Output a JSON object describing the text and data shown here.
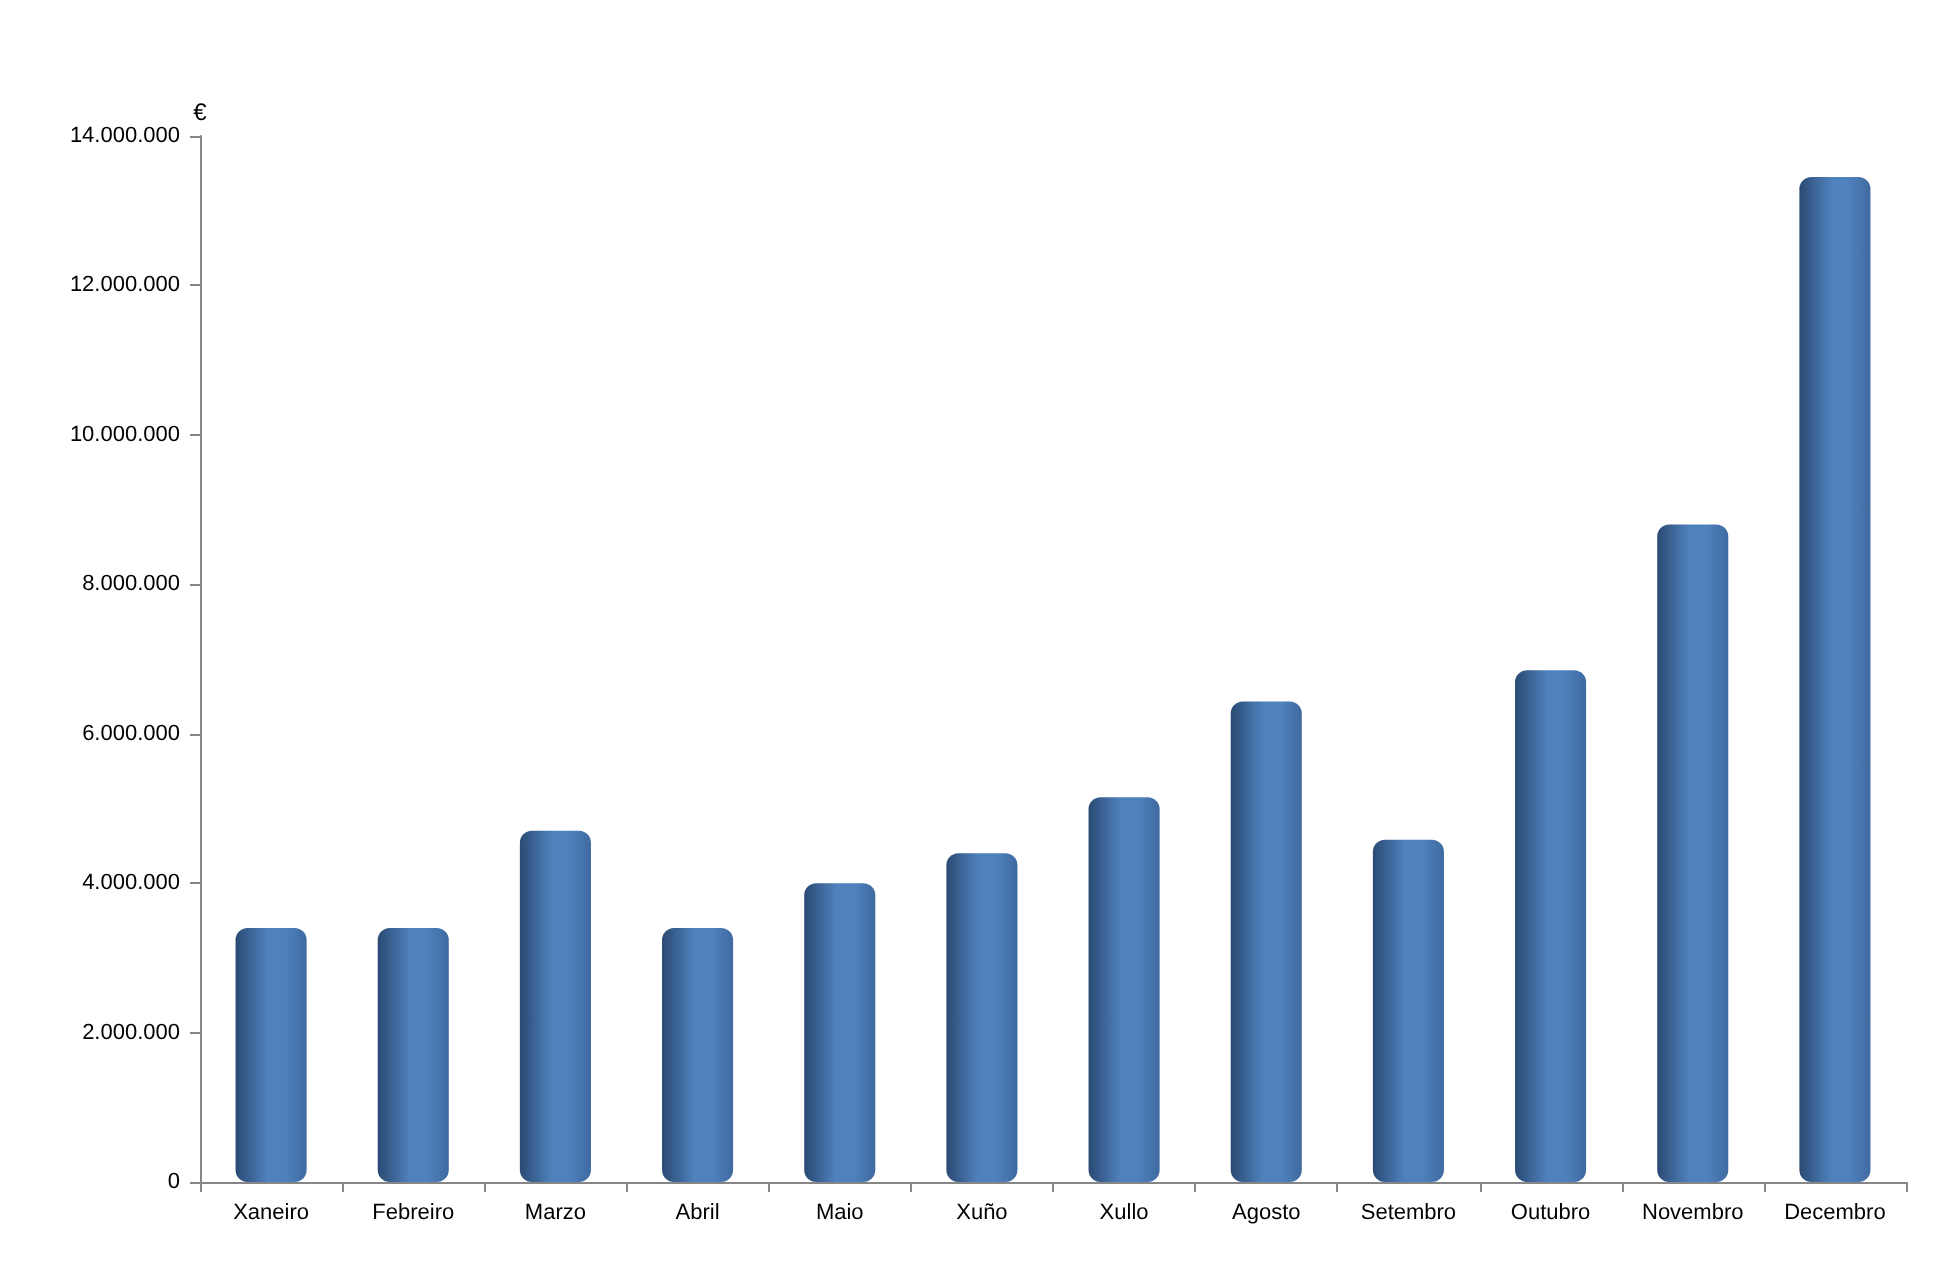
{
  "chart_data": {
    "type": "bar",
    "ylabel": "€",
    "categories": [
      "Xaneiro",
      "Febreiro",
      "Marzo",
      "Abril",
      "Maio",
      "Xuño",
      "Xullo",
      "Agosto",
      "Setembro",
      "Outubro",
      "Novembro",
      "Decembro"
    ],
    "values": [
      3400000,
      3400000,
      4700000,
      3400000,
      4000000,
      4400000,
      5150000,
      6430000,
      4580000,
      6850000,
      8800000,
      13450000
    ],
    "color": "#4f81bd",
    "ylim": [
      0,
      14000000
    ],
    "yticks": [
      0,
      {
        "value": 2000000,
        "label": "2.000.000"
      },
      {
        "value": 4000000,
        "label": "4.000.000"
      },
      {
        "value": 6000000,
        "label": "6.000.000"
      },
      {
        "value": 8000000,
        "label": "8.000.000"
      },
      {
        "value": 10000000,
        "label": "10.000.000"
      },
      {
        "value": 12000000,
        "label": "12.000.000"
      },
      {
        "value": 14000000,
        "label": "14.000.000"
      }
    ],
    "grid": false
  }
}
